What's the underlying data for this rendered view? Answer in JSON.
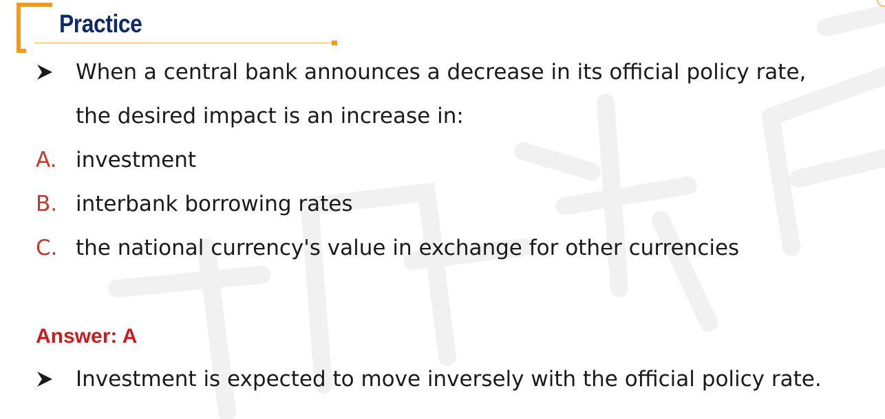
{
  "slide": {
    "title": "Practice",
    "question": {
      "line1": "When a central bank announces a decrease in its official policy rate,",
      "line2": "the desired impact is an increase in:"
    },
    "options": [
      {
        "letter": "A.",
        "text": "investment"
      },
      {
        "letter": "B.",
        "text": "interbank borrowing rates"
      },
      {
        "letter": "C.",
        "text": "the national currency's value in exchange for other currencies"
      }
    ],
    "answer": "Answer: A",
    "explanation": "Investment is expected to move inversely with the official policy rate."
  },
  "colors": {
    "title": "#0f2a6b",
    "accent_orange": "#f39a1e",
    "option_letter": "#c0392b",
    "answer": "#c81d1d"
  },
  "icons": {
    "bullet": "arrowhead-bullet-icon"
  }
}
